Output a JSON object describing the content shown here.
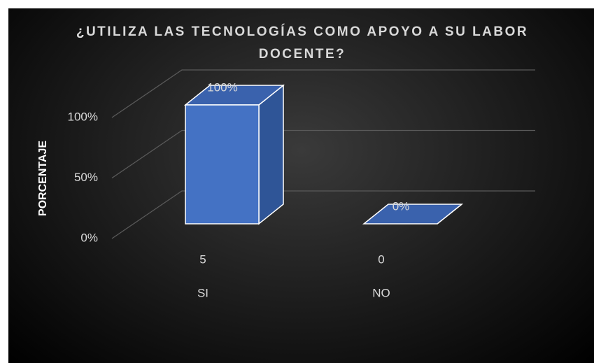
{
  "chart_data": {
    "type": "bar3d",
    "title": "¿UTILIZA LAS TECNOLOGÍAS COMO APOYO A SU LABOR DOCENTE?",
    "y_label": "PORCENTAJE",
    "categories": [
      "SI",
      "NO"
    ],
    "counts": [
      5,
      0
    ],
    "values": [
      100,
      0
    ],
    "value_labels": [
      "100%",
      "0%"
    ],
    "color": "#4472c4",
    "ylim": [
      0,
      100
    ],
    "yticks": [
      {
        "value": 0,
        "label": "0%"
      },
      {
        "value": 50,
        "label": "50%"
      },
      {
        "value": 100,
        "label": "100%"
      }
    ],
    "grid": true
  }
}
